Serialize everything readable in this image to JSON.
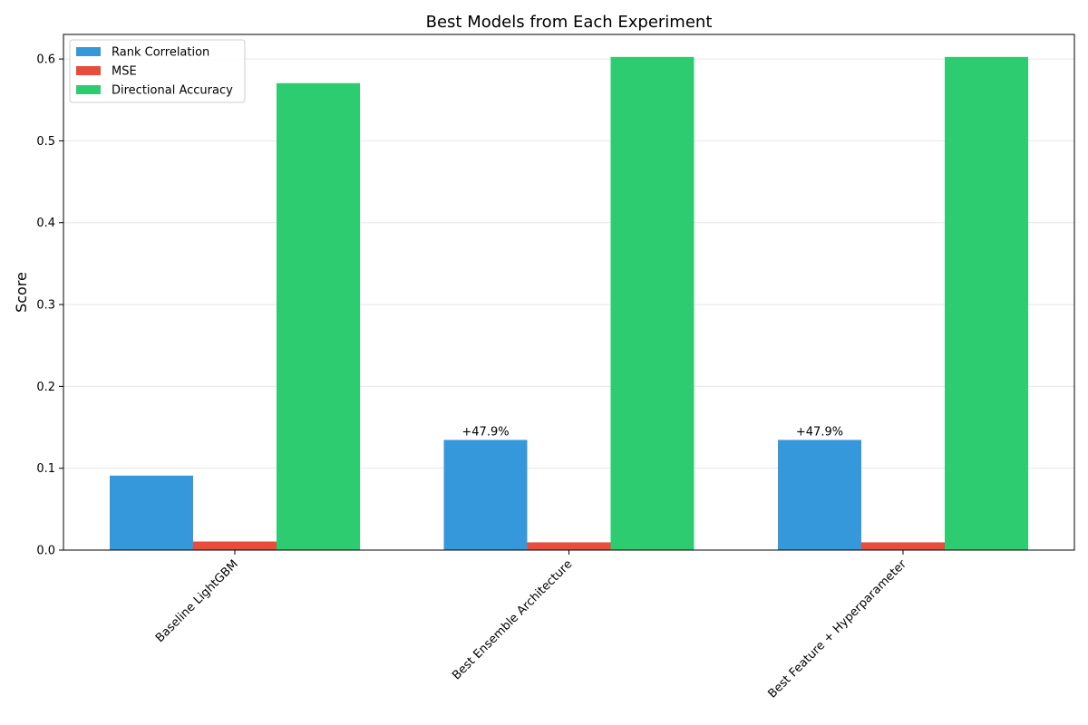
{
  "chart_data": {
    "type": "bar",
    "title": "Best Models from Each Experiment",
    "xlabel": "",
    "ylabel": "Score",
    "ylim": [
      0,
      0.63
    ],
    "yticks": [
      0.0,
      0.1,
      0.2,
      0.3,
      0.4,
      0.5,
      0.6
    ],
    "ytick_labels": [
      "0.0",
      "0.1",
      "0.2",
      "0.3",
      "0.4",
      "0.5",
      "0.6"
    ],
    "grid": "horizontal",
    "legend_position": "upper-left",
    "categories": [
      "Baseline LightGBM",
      "Best Ensemble Architecture",
      "Best Feature + Hyperparameter"
    ],
    "series": [
      {
        "name": "Rank Correlation",
        "color": "#3498db",
        "values": [
          0.091,
          0.1346,
          0.1346
        ]
      },
      {
        "name": "MSE",
        "color": "#e74c3c",
        "values": [
          0.0105,
          0.0095,
          0.0095
        ]
      },
      {
        "name": "Directional Accuracy",
        "color": "#2ecc71",
        "values": [
          0.5705,
          0.6025,
          0.6025
        ]
      }
    ],
    "annotations": [
      {
        "category_index": 1,
        "series_index": 0,
        "text": "+47.9%"
      },
      {
        "category_index": 2,
        "series_index": 0,
        "text": "+47.9%"
      }
    ]
  }
}
